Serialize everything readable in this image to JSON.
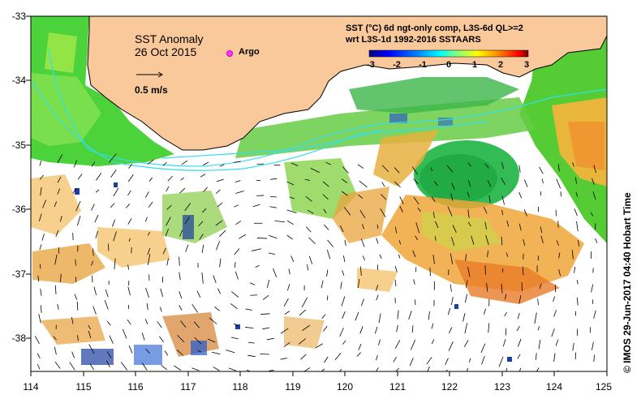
{
  "map": {
    "title": "SST Anomaly",
    "date": "26 Oct 2015",
    "legend_argo_label": "Argo",
    "legend_argo_color": "#ff33ff",
    "velocity_scale_label": "0.5 m/s",
    "land_color": "#f9c89b",
    "current_color": "#33ddee"
  },
  "sst_header": {
    "line1": "SST (°C) 6d ngt-only comp, L3S-6d QL>=2",
    "line2": "wrt L3S-1d 1992-2016 SSTAARS"
  },
  "colorbar": {
    "ticks": [
      "-3",
      "-2",
      "-1",
      "0",
      "1",
      "2",
      "3"
    ],
    "stops": [
      "#00007f",
      "#0000ff",
      "#0080ff",
      "#00ffff",
      "#80ff80",
      "#ffff00",
      "#ff8000",
      "#ff0000",
      "#7f0000"
    ]
  },
  "axes": {
    "lat_ticks": [
      "-33",
      "-34",
      "-35",
      "-36",
      "-37",
      "-38"
    ],
    "lon_ticks": [
      "114",
      "115",
      "116",
      "117",
      "118",
      "119",
      "120",
      "121",
      "122",
      "123",
      "124",
      "125"
    ]
  },
  "credit": "© IMOS 29-Jun-2017 04:40 Hobart Time"
}
